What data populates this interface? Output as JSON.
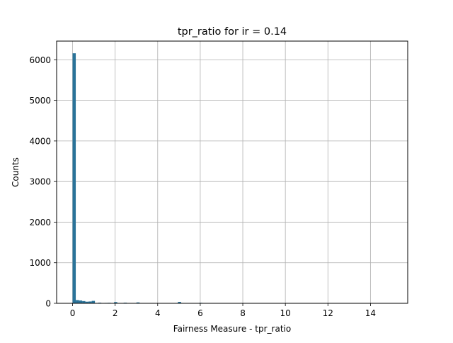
{
  "chart_data": {
    "type": "bar",
    "subtype": "histogram",
    "title": "tpr_ratio for ir = 0.14",
    "xlabel": "Fairness Measure - tpr_ratio",
    "ylabel": "Counts",
    "xlim": [
      -0.75,
      15.75
    ],
    "ylim": [
      0,
      6460
    ],
    "xticks": [
      0,
      2,
      4,
      6,
      8,
      10,
      12,
      14
    ],
    "yticks": [
      0,
      1000,
      2000,
      3000,
      4000,
      5000,
      6000
    ],
    "grid": true,
    "bar_color": "#2a7399",
    "bins": [
      {
        "x0": 0.0,
        "x1": 0.15,
        "count": 6160
      },
      {
        "x0": 0.15,
        "x1": 0.3,
        "count": 80
      },
      {
        "x0": 0.3,
        "x1": 0.45,
        "count": 70
      },
      {
        "x0": 0.45,
        "x1": 0.6,
        "count": 55
      },
      {
        "x0": 0.6,
        "x1": 0.75,
        "count": 40
      },
      {
        "x0": 0.75,
        "x1": 0.9,
        "count": 45
      },
      {
        "x0": 0.9,
        "x1": 1.05,
        "count": 60
      },
      {
        "x0": 1.2,
        "x1": 1.35,
        "count": 15
      },
      {
        "x0": 1.5,
        "x1": 1.65,
        "count": 10
      },
      {
        "x0": 1.65,
        "x1": 1.8,
        "count": 12
      },
      {
        "x0": 1.95,
        "x1": 2.1,
        "count": 30
      },
      {
        "x0": 2.4,
        "x1": 2.55,
        "count": 15
      },
      {
        "x0": 2.85,
        "x1": 3.0,
        "count": 8
      },
      {
        "x0": 3.0,
        "x1": 3.15,
        "count": 22
      },
      {
        "x0": 3.9,
        "x1": 4.05,
        "count": 8
      },
      {
        "x0": 4.95,
        "x1": 5.1,
        "count": 35
      },
      {
        "x0": 5.55,
        "x1": 5.7,
        "count": 6
      },
      {
        "x0": 5.95,
        "x1": 6.1,
        "count": 12
      }
    ]
  }
}
